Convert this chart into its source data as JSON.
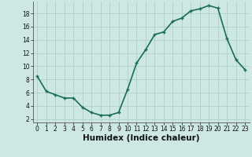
{
  "title": "",
  "xlabel": "Humidex (Indice chaleur)",
  "x": [
    0,
    1,
    2,
    3,
    4,
    5,
    6,
    7,
    8,
    9,
    10,
    11,
    12,
    13,
    14,
    15,
    16,
    17,
    18,
    19,
    20,
    21,
    22,
    23
  ],
  "y": [
    8.5,
    6.2,
    5.7,
    5.2,
    5.2,
    3.8,
    3.0,
    2.6,
    2.6,
    3.0,
    6.5,
    10.5,
    12.5,
    14.8,
    15.2,
    16.8,
    17.3,
    18.4,
    18.7,
    19.2,
    18.8,
    14.2,
    11.0,
    9.5
  ],
  "line_color": "#1a6b5a",
  "marker": "+",
  "bg_color": "#cde8e2",
  "grid_color": "#b0cfc9",
  "ylim": [
    1.5,
    19.8
  ],
  "xlim": [
    -0.5,
    23.5
  ],
  "yticks": [
    2,
    4,
    6,
    8,
    10,
    12,
    14,
    16,
    18
  ],
  "xticks": [
    0,
    1,
    2,
    3,
    4,
    5,
    6,
    7,
    8,
    9,
    10,
    11,
    12,
    13,
    14,
    15,
    16,
    17,
    18,
    19,
    20,
    21,
    22,
    23
  ],
  "tick_fontsize": 5.5,
  "xlabel_fontsize": 7.5,
  "line_width": 1.2
}
